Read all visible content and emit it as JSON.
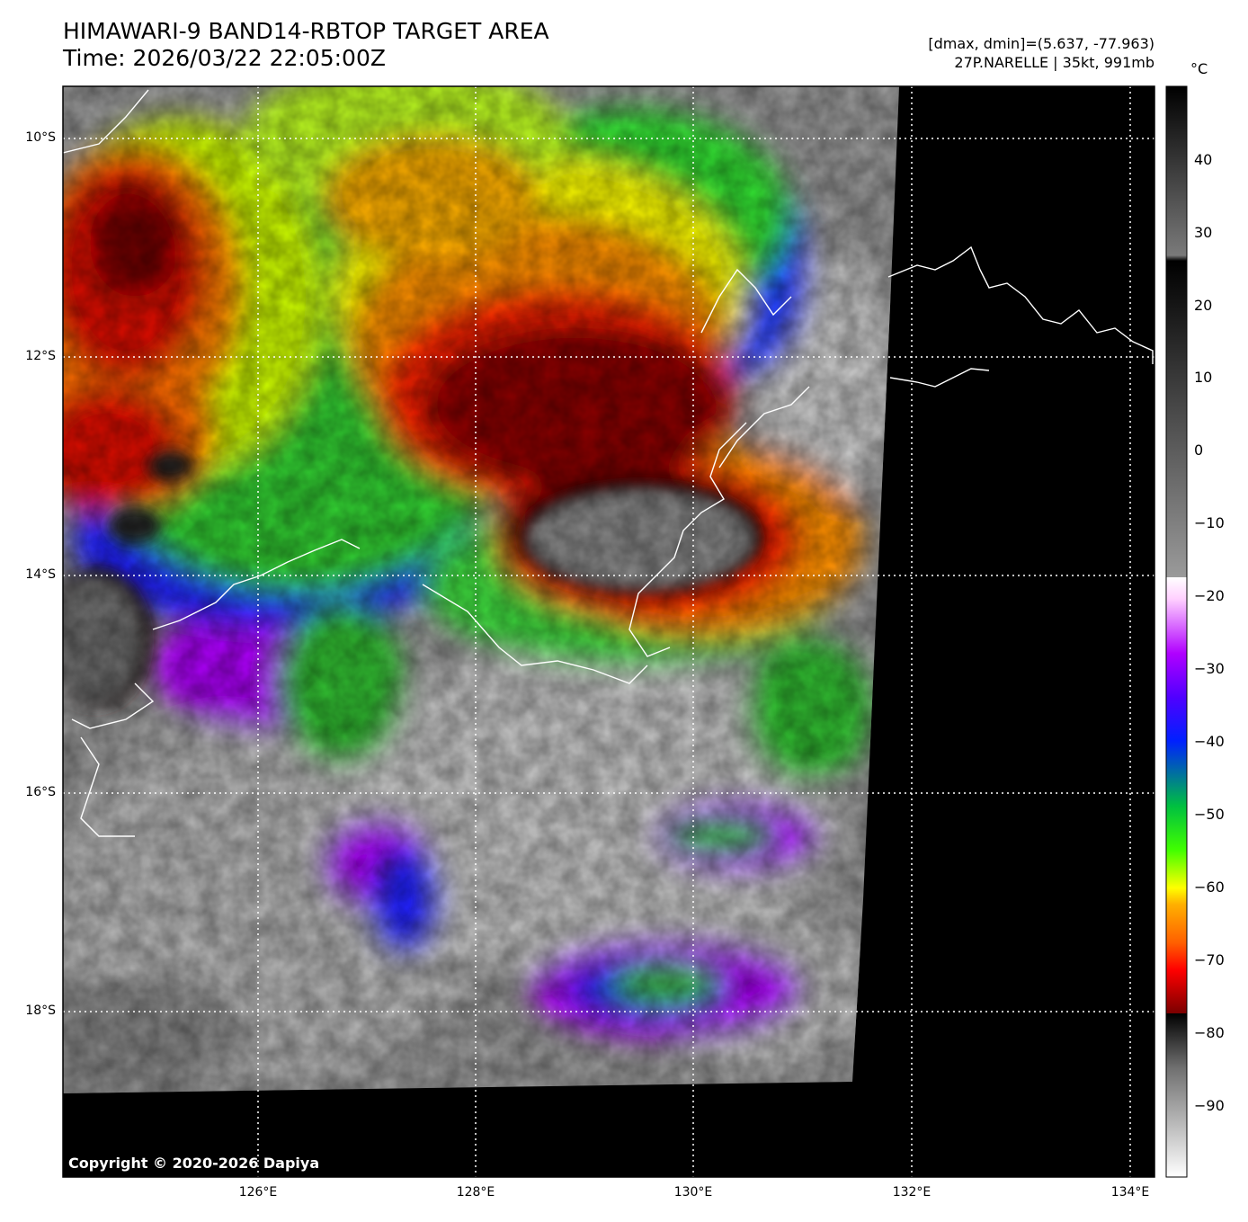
{
  "header": {
    "title_line1": "HIMAWARI-9 BAND14-RBTOP TARGET AREA",
    "title_line2": "Time: 2026/03/22 22:05:00Z",
    "meta_line1": "[dmax, dmin]=(5.637, -77.963)",
    "meta_line2": "27P.NARELLE | 35kt, 991mb"
  },
  "map": {
    "lat_labels": [
      "10°S",
      "12°S",
      "14°S",
      "16°S",
      "18°S"
    ],
    "lon_labels": [
      "126°E",
      "128°E",
      "130°E",
      "132°E",
      "134°E"
    ],
    "copyright": "Copyright © 2020-2026 Dapiya"
  },
  "colorbar": {
    "unit": "°C",
    "ticks": [
      "40",
      "30",
      "20",
      "10",
      "0",
      "−10",
      "−20",
      "−30",
      "−40",
      "−50",
      "−60",
      "−70",
      "−80",
      "−90"
    ]
  },
  "colors": {
    "cold_core": "#8a8a8a",
    "ring_black": "#1a0000",
    "dark_red": "#8b0000",
    "red": "#ff2000",
    "orange": "#ff9000",
    "yellow": "#ffff00",
    "green": "#30d030",
    "blue": "#2020ff",
    "purple": "#b000ff",
    "background_grey": "#a0a0a0",
    "coastline": "#ffffff"
  }
}
